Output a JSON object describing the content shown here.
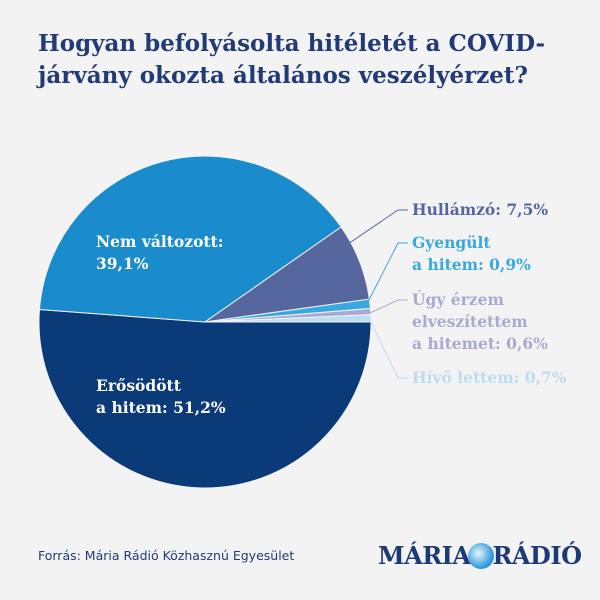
{
  "chart_data": {
    "type": "pie",
    "title": "Hogyan befolyásolta hitéletét a COVID-járvány okozta általános veszélyérzet?",
    "slices": [
      {
        "label": "Erősödött a hitem",
        "value": 51.2,
        "text": "Erősödött a hitem: 51,2%",
        "color": "#0b3a79"
      },
      {
        "label": "Nem változott",
        "value": 39.1,
        "text": "Nem változott: 39,1%",
        "color": "#1a8ccd"
      },
      {
        "label": "Hullámzó",
        "value": 7.5,
        "text": "Hullámzó: 7,5%",
        "color": "#56679f"
      },
      {
        "label": "Gyengült a hitem",
        "value": 0.9,
        "text": "Gyengült a hitem: 0,9%",
        "color": "#3aa8e0"
      },
      {
        "label": "Úgy érzem elveszítettem a hitemet",
        "value": 0.6,
        "text": "Úgy érzem elveszítettem a hitemet: 0,6%",
        "color": "#a9aad2"
      },
      {
        "label": "Hívő lettem",
        "value": 0.7,
        "text": "Hívő lettem: 0,7%",
        "color": "#bcdcf3"
      }
    ],
    "labels": {
      "s0a": "Erősödött",
      "s0b": "a hitem: 51,2%",
      "s1a": "Nem változott:",
      "s1b": "39,1%",
      "s2": "Hullámzó: 7,5%",
      "s3a": "Gyengült",
      "s3b": "a hitem: 0,9%",
      "s4a": "Úgy érzem",
      "s4b": "elveszítettem",
      "s4c": "a hitemet: 0,6%",
      "s5": "Hívő lettem: 0,7%"
    }
  },
  "footer": {
    "source": "Forrás: Mária Rádió Közhasznú Egyesület",
    "logo": "MÁRIA RÁDIÓ",
    "logo_left": "MÁRIA",
    "logo_right": "RÁDIÓ"
  }
}
